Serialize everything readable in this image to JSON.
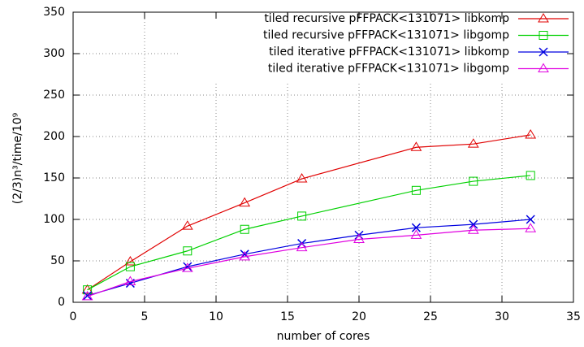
{
  "chart_data": {
    "type": "line",
    "xlabel": "number of cores",
    "ylabel": "(2/3)n³/time/10⁹",
    "xlim": [
      0,
      35
    ],
    "xticks": [
      0,
      5,
      10,
      15,
      20,
      25,
      30,
      35
    ],
    "ylim": [
      0,
      350
    ],
    "yticks": [
      0,
      50,
      100,
      150,
      200,
      250,
      300,
      350
    ],
    "grid": true,
    "legend": "top-right",
    "series": [
      {
        "name": "tiled recursive pFFPACK<131071> libkomp",
        "color": "#e00000",
        "marker": "triangle",
        "x": [
          1,
          4,
          8,
          12,
          16,
          24,
          28,
          32
        ],
        "values": [
          15,
          49,
          92,
          120,
          149,
          187,
          191,
          202
        ]
      },
      {
        "name": "tiled recursive pFFPACK<131071> libgomp",
        "color": "#00d000",
        "marker": "square",
        "x": [
          1,
          4,
          8,
          12,
          16,
          24,
          28,
          32
        ],
        "values": [
          15,
          43,
          62,
          88,
          104,
          135,
          146,
          153
        ]
      },
      {
        "name": "tiled iterative pFFPACK<131071> libkomp",
        "color": "#0000e0",
        "marker": "cross",
        "x": [
          1,
          4,
          8,
          12,
          16,
          20,
          24,
          28,
          32
        ],
        "values": [
          8,
          23,
          43,
          58,
          71,
          81,
          90,
          94,
          100
        ]
      },
      {
        "name": "tiled iterative pFFPACK<131071> libgomp",
        "color": "#e000e0",
        "marker": "triangle",
        "x": [
          1,
          4,
          8,
          12,
          16,
          20,
          24,
          28,
          32
        ],
        "values": [
          7,
          25,
          41,
          55,
          66,
          76,
          81,
          87,
          89
        ]
      }
    ]
  }
}
